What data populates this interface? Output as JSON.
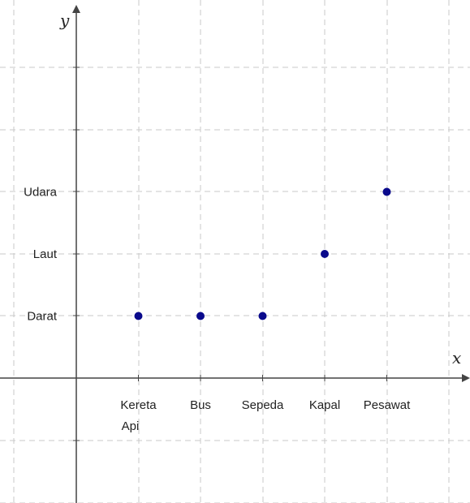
{
  "chart_data": {
    "type": "scatter",
    "xlabel": "x",
    "ylabel": "y",
    "categories": [
      "Kereta Api",
      "Bus",
      "Sepeda",
      "Kapal",
      "Pesawat"
    ],
    "y_categories": [
      "Darat",
      "Laut",
      "Udara"
    ],
    "points": [
      {
        "x": "Kereta Api",
        "y": "Darat"
      },
      {
        "x": "Bus",
        "y": "Darat"
      },
      {
        "x": "Sepeda",
        "y": "Darat"
      },
      {
        "x": "Kapal",
        "y": "Laut"
      },
      {
        "x": "Pesawat",
        "y": "Udara"
      }
    ],
    "grid": true,
    "colors": {
      "point": "#0a0a8c",
      "grid": "#c8c8c8",
      "axis": "#444444"
    }
  }
}
